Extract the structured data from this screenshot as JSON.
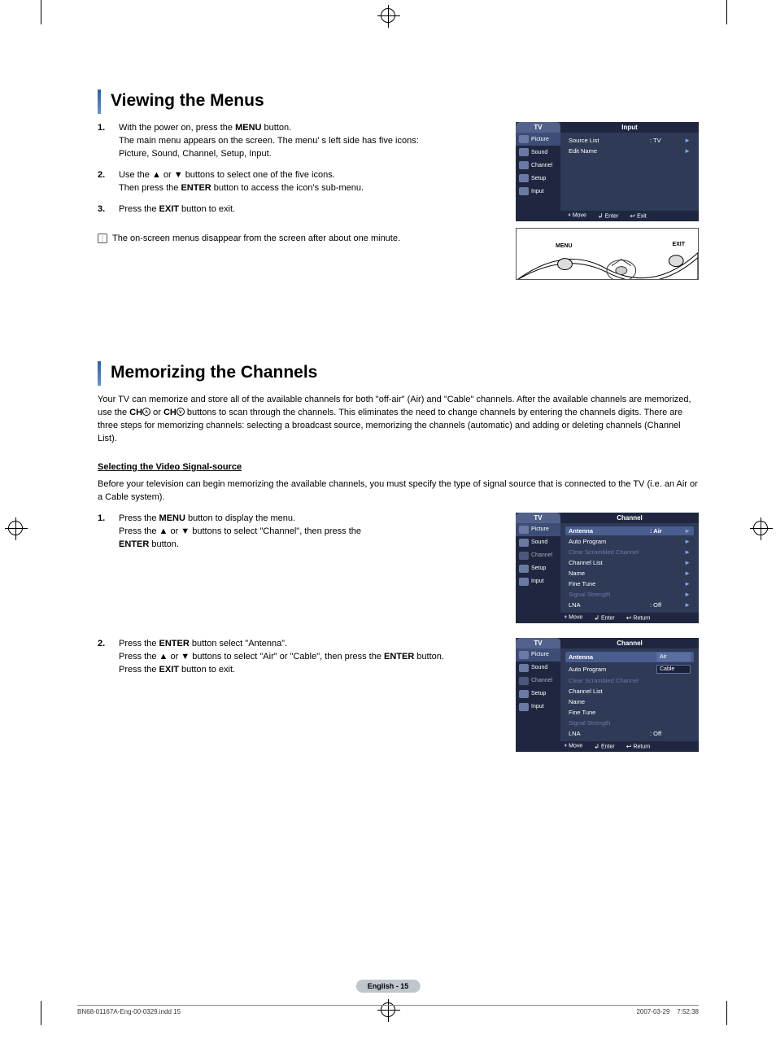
{
  "colors": {
    "osd_bg": "#2e3a56",
    "osd_header_title_bg": "#1f2740",
    "osd_side_bg": "#1f2740",
    "osd_side_active_bg": "#3d4d78",
    "osd_highlight_bg": "#4a5d8f",
    "osd_arrow": "#82a7e6",
    "osd_dim_text": "#6b7aa3",
    "osd_tv_tab_bg": "#53628a",
    "section_bar_top": "#2b5faa",
    "section_bar_bottom": "#6a93cc",
    "page_pill_bg": "#bfc6cc"
  },
  "section1": {
    "title": "Viewing the Menus",
    "steps": [
      {
        "num": "1.",
        "lines": [
          [
            "With the power on, press the ",
            {
              "b": "MENU"
            },
            " button."
          ],
          [
            "The main menu appears on the screen. The menu' s left side has five icons:"
          ],
          [
            "Picture, Sound, Channel, Setup, Input."
          ]
        ]
      },
      {
        "num": "2.",
        "lines": [
          [
            "Use the ▲ or ▼ buttons to select one of the five icons."
          ],
          [
            "Then press the ",
            {
              "b": "ENTER"
            },
            " button to access the icon's sub-menu."
          ]
        ]
      },
      {
        "num": "3.",
        "lines": [
          [
            "Press the ",
            {
              "b": "EXIT"
            },
            " button to exit."
          ]
        ]
      }
    ],
    "note": "The on-screen menus disappear from the screen after about one minute.",
    "osd": {
      "tv": "TV",
      "title": "Input",
      "side": [
        {
          "label": "Picture",
          "active": true
        },
        {
          "label": "Sound"
        },
        {
          "label": "Channel"
        },
        {
          "label": "Setup"
        },
        {
          "label": "Input"
        }
      ],
      "rows": [
        {
          "label": "Source List",
          "val": ": TV",
          "arrow": "►"
        },
        {
          "label": "Edit Name",
          "val": "",
          "arrow": "►"
        }
      ],
      "footer": {
        "move": "Move",
        "enter": "Enter",
        "exit": "Exit"
      }
    },
    "remote": {
      "menu_label": "MENU",
      "exit_label": "EXIT"
    }
  },
  "section2": {
    "title": "Memorizing the Channels",
    "intro_fragments": [
      "Your TV can memorize and store all of the available channels for both \"off-air\" (Air) and \"Cable\" channels. After the available channels are memorized, use the ",
      {
        "b": "CH"
      },
      {
        "circ": "∧"
      },
      " or ",
      {
        "b": "CH"
      },
      {
        "circ": "∨"
      },
      " buttons to scan through the channels. This eliminates the need to change channels by entering the channels digits. There are three steps for memorizing channels: selecting a broadcast source, memorizing the channels (automatic) and adding or deleting channels (Channel List)."
    ],
    "subheading": "Selecting the Video Signal-source",
    "pre_steps_text": "Before your television can begin memorizing the available channels, you must specify the type of signal source that is connected to the TV (i.e. an Air or a Cable system).",
    "steps_a": [
      {
        "num": "1.",
        "lines": [
          [
            "Press the ",
            {
              "b": "MENU"
            },
            " button to display the menu."
          ],
          [
            "Press the ▲ or ▼ buttons to select \"Channel\", then press the"
          ],
          [
            {
              "b": "ENTER"
            },
            " button."
          ]
        ]
      }
    ],
    "steps_b": [
      {
        "num": "2.",
        "lines": [
          [
            "Press the ",
            {
              "b": "ENTER"
            },
            " button select \"Antenna\"."
          ],
          [
            "Press the ▲ or ▼ buttons to select \"Air\" or \"Cable\", then press the ",
            {
              "b": "ENTER"
            },
            " button."
          ],
          [
            "Press the ",
            {
              "b": "EXIT"
            },
            " button to exit."
          ]
        ]
      }
    ],
    "osd_a": {
      "tv": "TV",
      "title": "Channel",
      "side": [
        {
          "label": "Picture",
          "active": true
        },
        {
          "label": "Sound"
        },
        {
          "label": "Channel",
          "dim": true
        },
        {
          "label": "Setup"
        },
        {
          "label": "Input"
        }
      ],
      "rows": [
        {
          "label": "Antenna",
          "val": ": Air",
          "arrow": "►",
          "hl": true
        },
        {
          "label": "Auto Program",
          "val": "",
          "arrow": "►"
        },
        {
          "label": "Clear Scrambled Channel",
          "val": "",
          "arrow": "►",
          "dim": true
        },
        {
          "label": "Channel List",
          "val": "",
          "arrow": "►"
        },
        {
          "label": "Name",
          "val": "",
          "arrow": "►"
        },
        {
          "label": "Fine Tune",
          "val": "",
          "arrow": "►"
        },
        {
          "label": "Signal Strength",
          "val": "",
          "arrow": "►",
          "dim": true
        },
        {
          "label": "LNA",
          "val": ": Off",
          "arrow": "►"
        }
      ],
      "footer": {
        "move": "Move",
        "enter": "Enter",
        "exit": "Return"
      }
    },
    "osd_b": {
      "tv": "TV",
      "title": "Channel",
      "side": [
        {
          "label": "Picture",
          "active": true
        },
        {
          "label": "Sound"
        },
        {
          "label": "Channel",
          "dim": true
        },
        {
          "label": "Setup"
        },
        {
          "label": "Input"
        }
      ],
      "rows": [
        {
          "label": "Antenna",
          "val": ":",
          "dropdown": "Air",
          "sel": true,
          "hl": true
        },
        {
          "label": "Auto Program",
          "val": "",
          "dropdown": "Cable"
        },
        {
          "label": "Clear Scrambled Channel",
          "val": "",
          "dim": true
        },
        {
          "label": "Channel List",
          "val": ""
        },
        {
          "label": "Name",
          "val": ""
        },
        {
          "label": "Fine Tune",
          "val": ""
        },
        {
          "label": "Signal Strength",
          "val": "",
          "dim": true
        },
        {
          "label": "LNA",
          "val": ": Off"
        }
      ],
      "footer": {
        "move": "Move",
        "enter": "Enter",
        "exit": "Return"
      }
    }
  },
  "page_footer": {
    "pill": "English - 15",
    "file": "BN68-01167A-Eng-00-0329.indd   15",
    "timestamp": "2007-03-29      7:52:38"
  }
}
